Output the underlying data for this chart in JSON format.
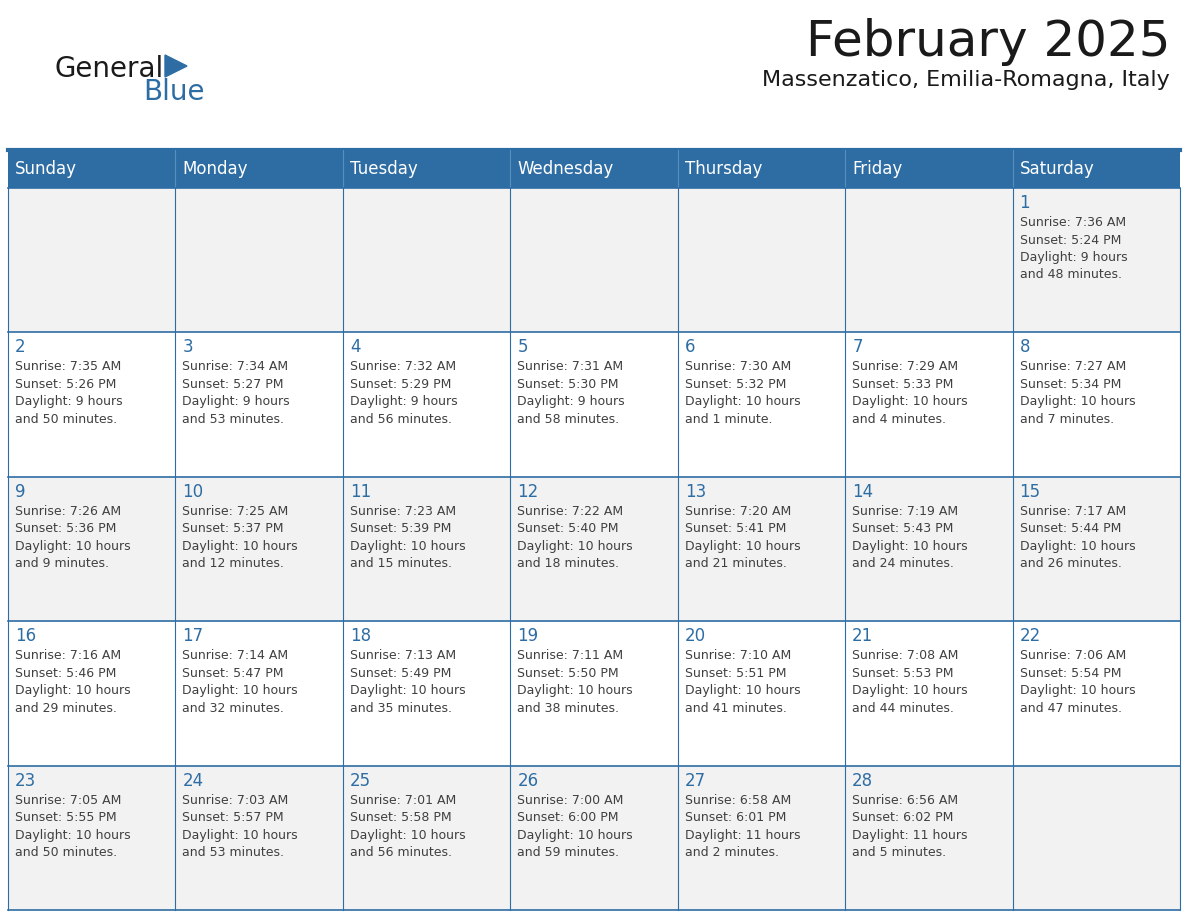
{
  "title": "February 2025",
  "subtitle": "Massenzatico, Emilia-Romagna, Italy",
  "header_bg": "#2E6DA4",
  "header_text_color": "#FFFFFF",
  "cell_bg_light": "#F2F2F2",
  "cell_bg_white": "#FFFFFF",
  "day_number_color": "#2E6DA4",
  "cell_text_color": "#404040",
  "border_color": "#2E6DA4",
  "days_of_week": [
    "Sunday",
    "Monday",
    "Tuesday",
    "Wednesday",
    "Thursday",
    "Friday",
    "Saturday"
  ],
  "logo_text1": "General",
  "logo_text2": "Blue",
  "logo_color1": "#1a1a1a",
  "logo_color2": "#2E6DA4",
  "title_fontsize": 36,
  "subtitle_fontsize": 16,
  "dow_fontsize": 12,
  "day_num_fontsize": 12,
  "cell_text_fontsize": 9,
  "weeks": [
    [
      {
        "day": null,
        "info": ""
      },
      {
        "day": null,
        "info": ""
      },
      {
        "day": null,
        "info": ""
      },
      {
        "day": null,
        "info": ""
      },
      {
        "day": null,
        "info": ""
      },
      {
        "day": null,
        "info": ""
      },
      {
        "day": 1,
        "info": "Sunrise: 7:36 AM\nSunset: 5:24 PM\nDaylight: 9 hours\nand 48 minutes."
      }
    ],
    [
      {
        "day": 2,
        "info": "Sunrise: 7:35 AM\nSunset: 5:26 PM\nDaylight: 9 hours\nand 50 minutes."
      },
      {
        "day": 3,
        "info": "Sunrise: 7:34 AM\nSunset: 5:27 PM\nDaylight: 9 hours\nand 53 minutes."
      },
      {
        "day": 4,
        "info": "Sunrise: 7:32 AM\nSunset: 5:29 PM\nDaylight: 9 hours\nand 56 minutes."
      },
      {
        "day": 5,
        "info": "Sunrise: 7:31 AM\nSunset: 5:30 PM\nDaylight: 9 hours\nand 58 minutes."
      },
      {
        "day": 6,
        "info": "Sunrise: 7:30 AM\nSunset: 5:32 PM\nDaylight: 10 hours\nand 1 minute."
      },
      {
        "day": 7,
        "info": "Sunrise: 7:29 AM\nSunset: 5:33 PM\nDaylight: 10 hours\nand 4 minutes."
      },
      {
        "day": 8,
        "info": "Sunrise: 7:27 AM\nSunset: 5:34 PM\nDaylight: 10 hours\nand 7 minutes."
      }
    ],
    [
      {
        "day": 9,
        "info": "Sunrise: 7:26 AM\nSunset: 5:36 PM\nDaylight: 10 hours\nand 9 minutes."
      },
      {
        "day": 10,
        "info": "Sunrise: 7:25 AM\nSunset: 5:37 PM\nDaylight: 10 hours\nand 12 minutes."
      },
      {
        "day": 11,
        "info": "Sunrise: 7:23 AM\nSunset: 5:39 PM\nDaylight: 10 hours\nand 15 minutes."
      },
      {
        "day": 12,
        "info": "Sunrise: 7:22 AM\nSunset: 5:40 PM\nDaylight: 10 hours\nand 18 minutes."
      },
      {
        "day": 13,
        "info": "Sunrise: 7:20 AM\nSunset: 5:41 PM\nDaylight: 10 hours\nand 21 minutes."
      },
      {
        "day": 14,
        "info": "Sunrise: 7:19 AM\nSunset: 5:43 PM\nDaylight: 10 hours\nand 24 minutes."
      },
      {
        "day": 15,
        "info": "Sunrise: 7:17 AM\nSunset: 5:44 PM\nDaylight: 10 hours\nand 26 minutes."
      }
    ],
    [
      {
        "day": 16,
        "info": "Sunrise: 7:16 AM\nSunset: 5:46 PM\nDaylight: 10 hours\nand 29 minutes."
      },
      {
        "day": 17,
        "info": "Sunrise: 7:14 AM\nSunset: 5:47 PM\nDaylight: 10 hours\nand 32 minutes."
      },
      {
        "day": 18,
        "info": "Sunrise: 7:13 AM\nSunset: 5:49 PM\nDaylight: 10 hours\nand 35 minutes."
      },
      {
        "day": 19,
        "info": "Sunrise: 7:11 AM\nSunset: 5:50 PM\nDaylight: 10 hours\nand 38 minutes."
      },
      {
        "day": 20,
        "info": "Sunrise: 7:10 AM\nSunset: 5:51 PM\nDaylight: 10 hours\nand 41 minutes."
      },
      {
        "day": 21,
        "info": "Sunrise: 7:08 AM\nSunset: 5:53 PM\nDaylight: 10 hours\nand 44 minutes."
      },
      {
        "day": 22,
        "info": "Sunrise: 7:06 AM\nSunset: 5:54 PM\nDaylight: 10 hours\nand 47 minutes."
      }
    ],
    [
      {
        "day": 23,
        "info": "Sunrise: 7:05 AM\nSunset: 5:55 PM\nDaylight: 10 hours\nand 50 minutes."
      },
      {
        "day": 24,
        "info": "Sunrise: 7:03 AM\nSunset: 5:57 PM\nDaylight: 10 hours\nand 53 minutes."
      },
      {
        "day": 25,
        "info": "Sunrise: 7:01 AM\nSunset: 5:58 PM\nDaylight: 10 hours\nand 56 minutes."
      },
      {
        "day": 26,
        "info": "Sunrise: 7:00 AM\nSunset: 6:00 PM\nDaylight: 10 hours\nand 59 minutes."
      },
      {
        "day": 27,
        "info": "Sunrise: 6:58 AM\nSunset: 6:01 PM\nDaylight: 11 hours\nand 2 minutes."
      },
      {
        "day": 28,
        "info": "Sunrise: 6:56 AM\nSunset: 6:02 PM\nDaylight: 11 hours\nand 5 minutes."
      },
      {
        "day": null,
        "info": ""
      }
    ]
  ]
}
